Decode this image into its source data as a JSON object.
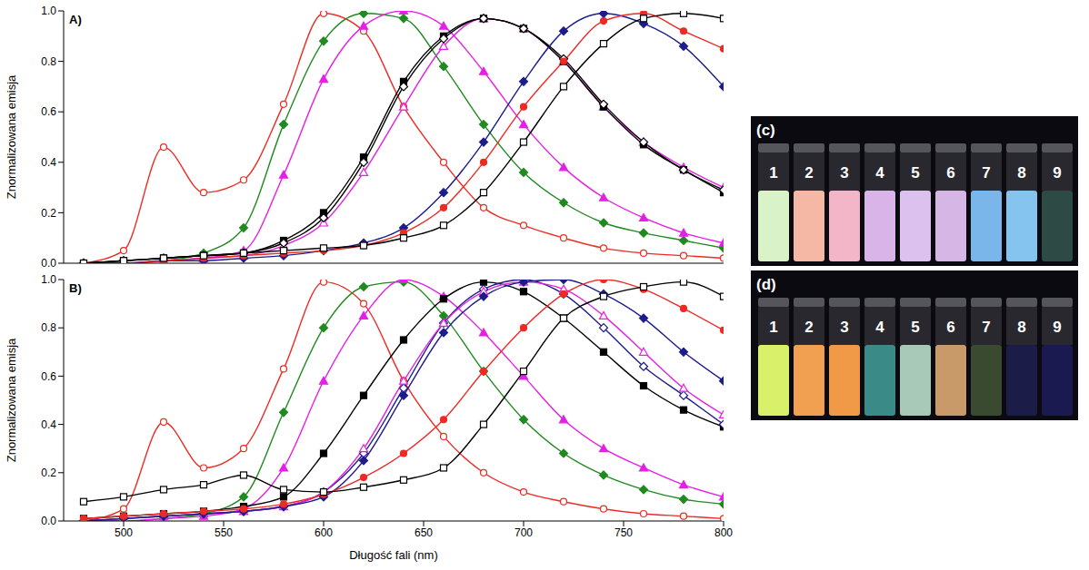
{
  "chart_data": [
    {
      "type": "line",
      "title": "A)",
      "y_label": "Znormalizowana emisja",
      "tick_labels": "y",
      "x": [
        480,
        500,
        520,
        540,
        560,
        580,
        600,
        620,
        640,
        660,
        680,
        700,
        720,
        740,
        760,
        780,
        800
      ],
      "xlim": [
        470,
        800
      ],
      "xticks": [
        500,
        550,
        600,
        650,
        700,
        750,
        800
      ],
      "ylim": [
        0,
        1
      ],
      "yticks": [
        {
          "value": 0,
          "label": "0.0"
        },
        {
          "value": 0.2,
          "label": "0.2"
        },
        {
          "value": 0.4,
          "label": "0.4"
        },
        {
          "value": 0.6,
          "label": "0.6"
        },
        {
          "value": 0.8,
          "label": "0.8"
        },
        {
          "value": 1,
          "label": "1.0"
        }
      ],
      "series": [
        {
          "color": "#ee2a24",
          "marker": "circle-open",
          "values": [
            0.0,
            0.05,
            0.46,
            0.28,
            0.33,
            0.63,
            0.99,
            0.92,
            0.62,
            0.4,
            0.22,
            0.15,
            0.1,
            0.06,
            0.04,
            0.03,
            0.02
          ]
        },
        {
          "color": "#1f8a1f",
          "marker": "diamond",
          "values": [
            0,
            0,
            0.01,
            0.04,
            0.14,
            0.55,
            0.88,
            0.99,
            0.97,
            0.78,
            0.55,
            0.36,
            0.24,
            0.16,
            0.12,
            0.09,
            0.06
          ]
        },
        {
          "color": "#e61ee6",
          "marker": "triangle",
          "values": [
            0,
            0,
            0.01,
            0.02,
            0.05,
            0.35,
            0.73,
            0.94,
            1.0,
            0.94,
            0.76,
            0.55,
            0.38,
            0.26,
            0.18,
            0.12,
            0.08
          ]
        },
        {
          "color": "#e61ee6",
          "marker": "triangle-open",
          "values": [
            0,
            0,
            0.01,
            0.02,
            0.03,
            0.07,
            0.16,
            0.36,
            0.62,
            0.86,
            0.97,
            0.93,
            0.8,
            0.62,
            0.48,
            0.38,
            0.3
          ]
        },
        {
          "color": "#000000",
          "marker": "square",
          "values": [
            0,
            0.01,
            0.02,
            0.03,
            0.04,
            0.09,
            0.2,
            0.42,
            0.72,
            0.9,
            0.97,
            0.93,
            0.8,
            0.62,
            0.47,
            0.37,
            0.28
          ]
        },
        {
          "color": "#000000",
          "marker": "diamond-open",
          "values": [
            0,
            0.01,
            0.02,
            0.03,
            0.04,
            0.08,
            0.18,
            0.4,
            0.7,
            0.89,
            0.97,
            0.93,
            0.81,
            0.63,
            0.48,
            0.37,
            0.29
          ]
        },
        {
          "color": "#1c1c8c",
          "marker": "diamond",
          "values": [
            0,
            0,
            0.01,
            0.01,
            0.02,
            0.03,
            0.05,
            0.08,
            0.14,
            0.28,
            0.48,
            0.72,
            0.92,
            0.99,
            0.95,
            0.86,
            0.7
          ]
        },
        {
          "color": "#ee2a24",
          "marker": "circle",
          "values": [
            0,
            0,
            0.01,
            0.02,
            0.03,
            0.04,
            0.05,
            0.07,
            0.12,
            0.22,
            0.4,
            0.62,
            0.8,
            0.96,
            0.99,
            0.92,
            0.85
          ]
        },
        {
          "color": "#000000",
          "marker": "square-open",
          "values": [
            0,
            0.01,
            0.02,
            0.03,
            0.04,
            0.05,
            0.06,
            0.07,
            0.1,
            0.15,
            0.28,
            0.48,
            0.7,
            0.87,
            0.97,
            0.99,
            0.97
          ]
        }
      ]
    },
    {
      "type": "line",
      "title": "B)",
      "x_label": "Długość fali (nm)",
      "y_label": "Znormalizowana emisja",
      "x": [
        480,
        500,
        520,
        540,
        560,
        580,
        600,
        620,
        640,
        660,
        680,
        700,
        720,
        740,
        760,
        780,
        800
      ],
      "xlim": [
        470,
        800
      ],
      "xticks": [
        500,
        550,
        600,
        650,
        700,
        750,
        800
      ],
      "ylim": [
        0,
        1
      ],
      "yticks": [
        {
          "value": 0,
          "label": "0.0"
        },
        {
          "value": 0.2,
          "label": "0.2"
        },
        {
          "value": 0.4,
          "label": "0.4"
        },
        {
          "value": 0.6,
          "label": "0.6"
        },
        {
          "value": 0.8,
          "label": "0.8"
        },
        {
          "value": 1,
          "label": "1.0"
        }
      ],
      "series": [
        {
          "color": "#ee2a24",
          "marker": "circle-open",
          "values": [
            0.0,
            0.05,
            0.41,
            0.22,
            0.3,
            0.63,
            0.99,
            0.9,
            0.58,
            0.35,
            0.2,
            0.12,
            0.08,
            0.05,
            0.03,
            0.02,
            0.01
          ]
        },
        {
          "color": "#1f8a1f",
          "marker": "diamond",
          "values": [
            0,
            0,
            0.01,
            0.03,
            0.1,
            0.45,
            0.8,
            0.97,
            0.99,
            0.85,
            0.62,
            0.42,
            0.28,
            0.19,
            0.13,
            0.09,
            0.07
          ]
        },
        {
          "color": "#e61ee6",
          "marker": "triangle",
          "values": [
            0,
            0,
            0.01,
            0.02,
            0.05,
            0.22,
            0.58,
            0.85,
            1.0,
            0.93,
            0.78,
            0.6,
            0.42,
            0.3,
            0.22,
            0.15,
            0.1
          ]
        },
        {
          "color": "#000000",
          "marker": "square",
          "values": [
            0.01,
            0.02,
            0.03,
            0.04,
            0.06,
            0.1,
            0.28,
            0.52,
            0.75,
            0.92,
            0.99,
            0.95,
            0.84,
            0.7,
            0.56,
            0.46,
            0.39
          ]
        },
        {
          "color": "#1c1c8c",
          "marker": "diamond-open",
          "values": [
            0,
            0.01,
            0.02,
            0.03,
            0.04,
            0.06,
            0.12,
            0.28,
            0.55,
            0.82,
            0.96,
            1.0,
            0.94,
            0.8,
            0.64,
            0.52,
            0.4
          ]
        },
        {
          "color": "#e61ee6",
          "marker": "triangle-open",
          "values": [
            0,
            0.01,
            0.02,
            0.03,
            0.04,
            0.06,
            0.12,
            0.3,
            0.58,
            0.82,
            0.95,
            0.99,
            0.96,
            0.85,
            0.7,
            0.55,
            0.44
          ]
        },
        {
          "color": "#1c1c8c",
          "marker": "diamond",
          "values": [
            0,
            0.01,
            0.02,
            0.03,
            0.04,
            0.06,
            0.1,
            0.25,
            0.52,
            0.78,
            0.93,
            0.99,
            1.0,
            0.94,
            0.84,
            0.7,
            0.58
          ]
        },
        {
          "color": "#ee2a24",
          "marker": "circle",
          "values": [
            0.01,
            0.02,
            0.03,
            0.04,
            0.05,
            0.07,
            0.11,
            0.18,
            0.28,
            0.42,
            0.62,
            0.8,
            0.94,
            1.0,
            0.96,
            0.88,
            0.79
          ]
        },
        {
          "color": "#000000",
          "marker": "square-open",
          "values": [
            0.08,
            0.1,
            0.13,
            0.15,
            0.19,
            0.13,
            0.12,
            0.14,
            0.17,
            0.22,
            0.4,
            0.62,
            0.84,
            0.93,
            0.97,
            0.99,
            0.93
          ]
        }
      ]
    }
  ],
  "photos": [
    {
      "label": "(c)",
      "vials": [
        {
          "label": "1",
          "color": "#d9f2c8"
        },
        {
          "label": "2",
          "color": "#f4b8a4"
        },
        {
          "label": "3",
          "color": "#f2b6c8"
        },
        {
          "label": "4",
          "color": "#d8b4e8"
        },
        {
          "label": "5",
          "color": "#dcc0ee"
        },
        {
          "label": "6",
          "color": "#d6b6e4"
        },
        {
          "label": "7",
          "color": "#7ab6ea"
        },
        {
          "label": "8",
          "color": "#86c4f0"
        },
        {
          "label": "9",
          "color": "#2e4a44"
        }
      ]
    },
    {
      "label": "(d)",
      "vials": [
        {
          "label": "1",
          "color": "#d8f06a"
        },
        {
          "label": "2",
          "color": "#f0a050"
        },
        {
          "label": "3",
          "color": "#f09a48"
        },
        {
          "label": "4",
          "color": "#3a8a88"
        },
        {
          "label": "5",
          "color": "#a8c8b8"
        },
        {
          "label": "6",
          "color": "#c89a6a"
        },
        {
          "label": "7",
          "color": "#3a4a30"
        },
        {
          "label": "8",
          "color": "#1c1c48"
        },
        {
          "label": "9",
          "color": "#1a1a50"
        }
      ]
    }
  ]
}
